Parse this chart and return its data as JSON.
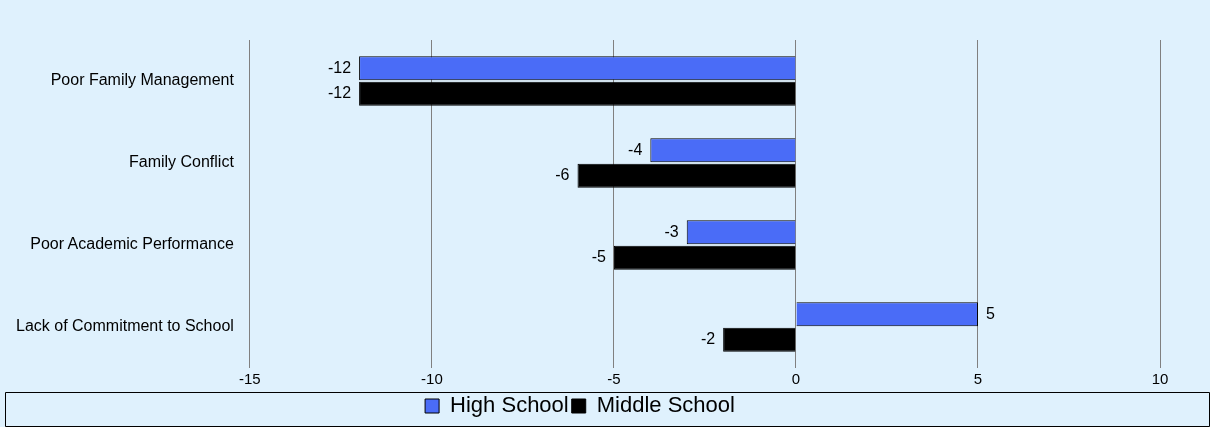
{
  "chart_data": {
    "type": "bar",
    "orientation": "horizontal",
    "categories": [
      "Poor Family Management",
      "Family Conflict",
      "Poor Academic Performance",
      "Lack of Commitment to School"
    ],
    "series": [
      {
        "name": "High School",
        "color": "#4a6cf7",
        "values": [
          -12,
          -4,
          -3,
          5
        ]
      },
      {
        "name": "Middle School",
        "color": "#000000",
        "values": [
          -12,
          -6,
          -5,
          -2
        ]
      }
    ],
    "xlim": [
      -15,
      10
    ],
    "xticks": [
      -15,
      -10,
      -5,
      0,
      5,
      10
    ],
    "grid": "x",
    "legend": "bottom",
    "data_labels": true
  }
}
